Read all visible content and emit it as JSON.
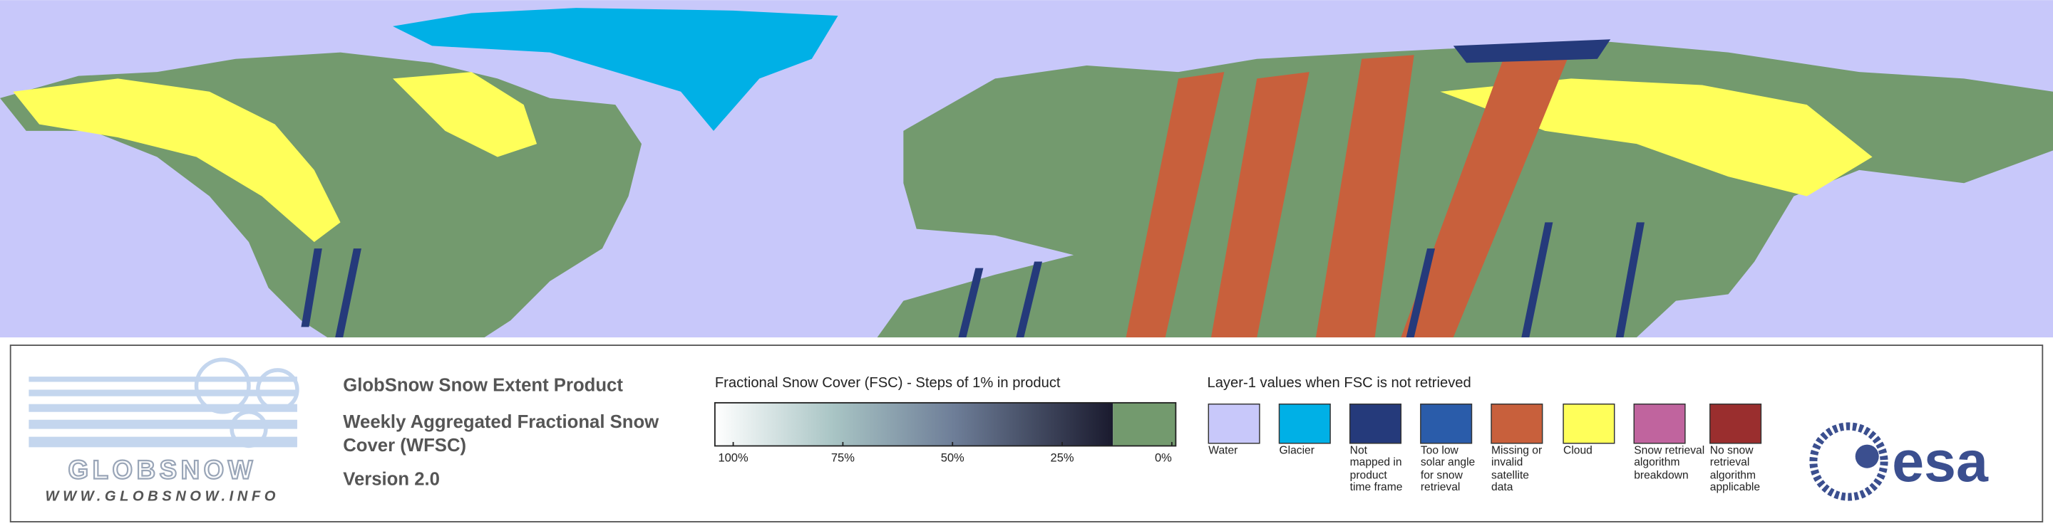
{
  "logo": {
    "name": "GLOBSNOW",
    "url": "WWW.GLOBSNOW.INFO"
  },
  "product": {
    "title": "GlobSnow Snow Extent Product",
    "subtitle": "Weekly Aggregated Fractional Snow Cover (WFSC)",
    "version": "Version 2.0"
  },
  "colorbar": {
    "title": "Fractional Snow Cover (FSC) - Steps of 1% in product",
    "tick_labels": [
      "100%",
      "75%",
      "50%",
      "25%",
      "0%"
    ]
  },
  "legend": {
    "title": "Layer-1 values when FSC is not retrieved",
    "items": [
      {
        "label": "Water",
        "color": "#c8c8fa"
      },
      {
        "label": "Glacier",
        "color": "#00b0e6"
      },
      {
        "label": "Not mapped in product time frame",
        "color": "#253a7b"
      },
      {
        "label": "Too low solar angle for snow retrieval",
        "color": "#2a5caa"
      },
      {
        "label": "Missing or invalid satellite data",
        "color": "#c8603c"
      },
      {
        "label": "Cloud",
        "color": "#ffff5a"
      },
      {
        "label": "Snow retrieval algorithm breakdown",
        "color": "#c0649e"
      },
      {
        "label": "No snow retrieval algorithm applicable",
        "color": "#9a2e2e"
      }
    ]
  },
  "agency_logo": "esa"
}
